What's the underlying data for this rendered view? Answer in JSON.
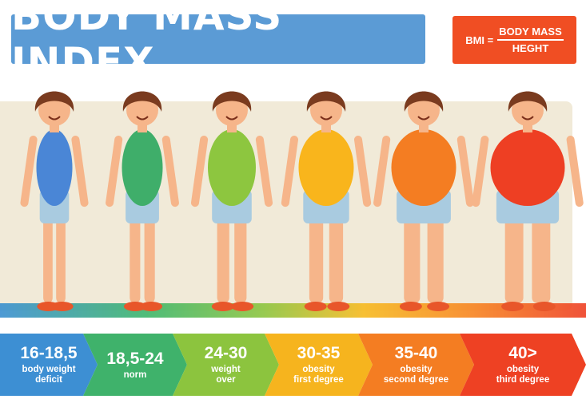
{
  "title": "BODY MASS INDEX",
  "formula": {
    "lhs": "BMI =",
    "numerator": "BODY MASS",
    "denominator": "HEGHT"
  },
  "categories": [
    {
      "range": "16-18,5",
      "desc_line1": "body weight",
      "desc_line2": "deficit",
      "color": "#3d8fd3"
    },
    {
      "range": "18,5-24",
      "desc_line1": "norm",
      "desc_line2": "",
      "color": "#3fb26b"
    },
    {
      "range": "24-30",
      "desc_line1": "weight",
      "desc_line2": "over",
      "color": "#8cc43e"
    },
    {
      "range": "30-35",
      "desc_line1": "obesity",
      "desc_line2": "first degree",
      "color": "#f6b41e"
    },
    {
      "range": "35-40",
      "desc_line1": "obesity",
      "desc_line2": "second degree",
      "color": "#f47d22"
    },
    {
      "range": "40>",
      "desc_line1": "obesity",
      "desc_line2": "third degree",
      "color": "#ee4123"
    }
  ],
  "figures": [
    {
      "body_color": "#4a86d6",
      "width_factor": 0.55
    },
    {
      "body_color": "#3fae6a",
      "width_factor": 0.65
    },
    {
      "body_color": "#8dc63f",
      "width_factor": 0.8
    },
    {
      "body_color": "#f9b51c",
      "width_factor": 0.95
    },
    {
      "body_color": "#f47d22",
      "width_factor": 1.15
    },
    {
      "body_color": "#ee3f23",
      "width_factor": 1.35
    }
  ]
}
